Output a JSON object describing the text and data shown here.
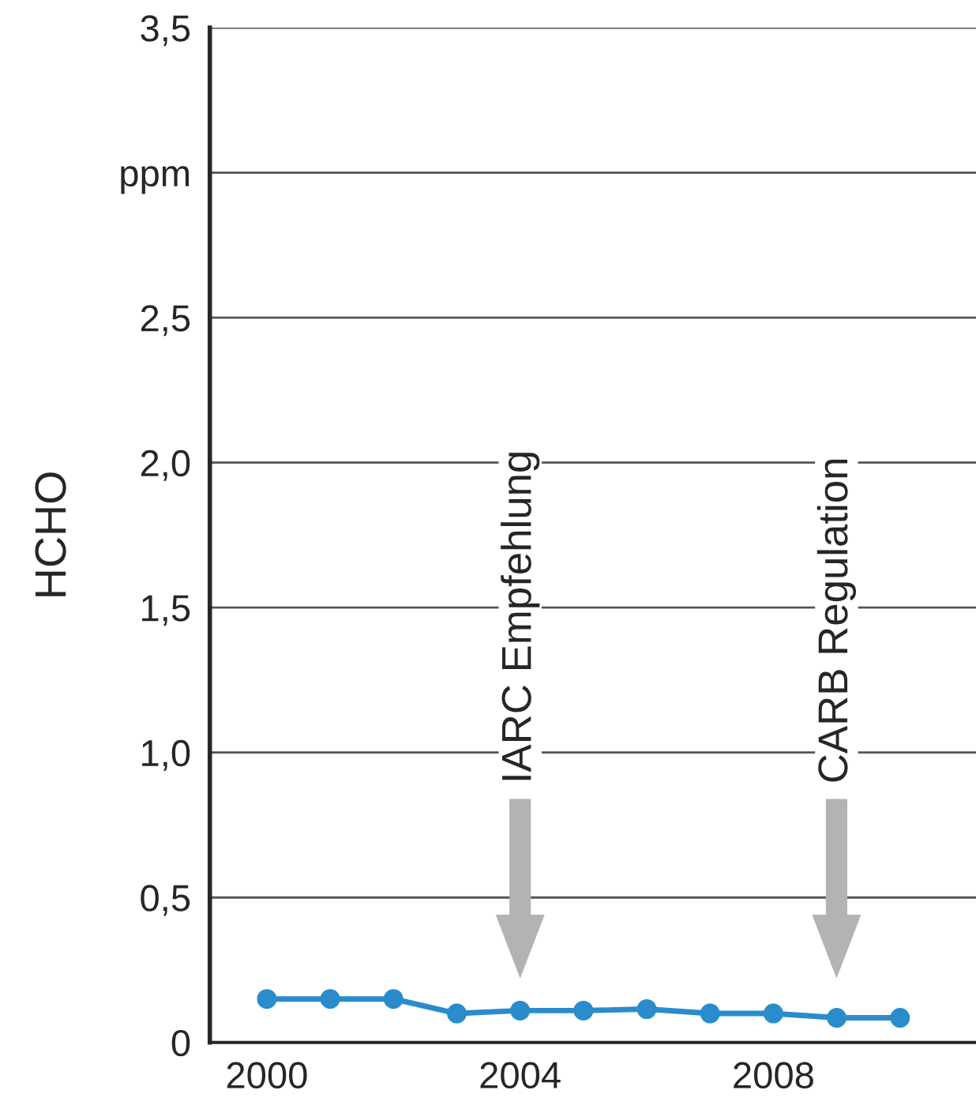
{
  "chart_data": {
    "type": "line",
    "ylabel": "HCHO",
    "x": [
      2000,
      2001,
      2002,
      2003,
      2004,
      2005,
      2006,
      2007,
      2008,
      2009,
      2010
    ],
    "series": [
      {
        "color": "#2a8ccc",
        "values": [
          0.15,
          0.15,
          0.15,
          0.1,
          0.11,
          0.11,
          0.115,
          0.1,
          0.1,
          0.085,
          0.085
        ]
      }
    ],
    "xlim": [
      1999.1,
      2011.2
    ],
    "xticks": [
      2000,
      2004,
      2008
    ],
    "ylim": [
      0,
      3.5
    ],
    "yticks": [
      0,
      {
        "value": 0.5,
        "label": "0,5"
      },
      {
        "value": 1.0,
        "label": "1,0"
      },
      {
        "value": 1.5,
        "label": "1,5"
      },
      {
        "value": 2.0,
        "label": "2,0"
      },
      {
        "value": 2.5,
        "label": "2,5"
      },
      {
        "value": 3.0,
        "label": "ppm"
      },
      {
        "value": 3.5,
        "label": "3,5"
      }
    ],
    "annotations": [
      "IARC Empfehlung",
      "CARB Regulation"
    ],
    "grid": "y",
    "marker": "circle",
    "line_style": "solid",
    "legend": false
  }
}
